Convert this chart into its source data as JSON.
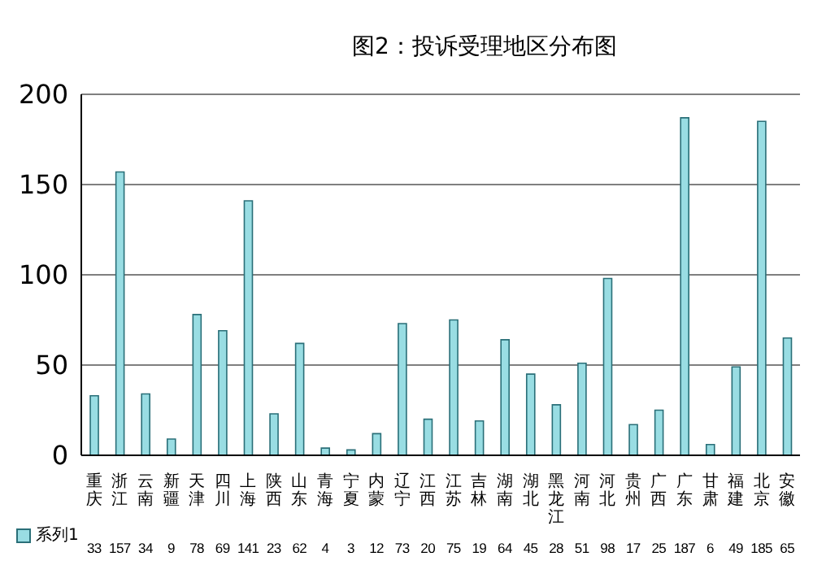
{
  "chart_data": {
    "type": "bar",
    "title": "图2：投诉受理地区分布图",
    "categories": [
      "重庆",
      "浙江",
      "云南",
      "新疆",
      "天津",
      "四川",
      "上海",
      "陕西",
      "山东",
      "青海",
      "宁夏",
      "内蒙",
      "辽宁",
      "江西",
      "江苏",
      "吉林",
      "湖南",
      "湖北",
      "黑龙江",
      "河南",
      "河北",
      "贵州",
      "广西",
      "广东",
      "甘肃",
      "福建",
      "北京",
      "安徽"
    ],
    "series": [
      {
        "name": "系列1",
        "color": "#99dde3",
        "values": [
          33,
          157,
          34,
          9,
          78,
          69,
          141,
          23,
          62,
          4,
          3,
          12,
          73,
          20,
          75,
          19,
          64,
          45,
          28,
          51,
          98,
          17,
          25,
          187,
          6,
          49,
          185,
          65
        ]
      }
    ],
    "ylim": [
      0,
      200
    ],
    "yticks": [
      0,
      50,
      100,
      150,
      200
    ],
    "grid": "y",
    "data_labels": true,
    "legend": "bottom left"
  }
}
